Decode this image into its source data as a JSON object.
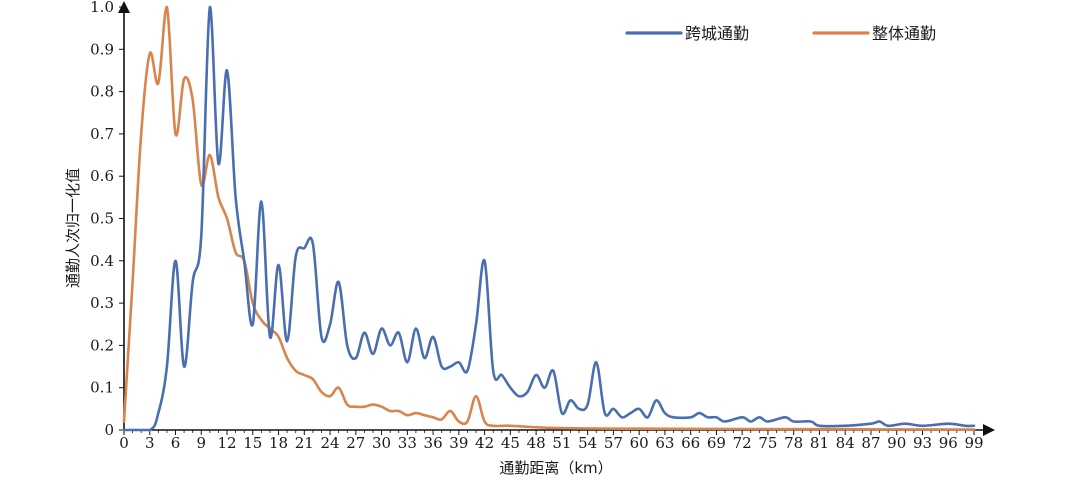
{
  "chart_data": {
    "type": "line",
    "xlabel": "通勤距离（km）",
    "ylabel": "通勤人次归一化值",
    "xlim": [
      0,
      100
    ],
    "ylim": [
      0,
      1.0
    ],
    "x_ticks": [
      0,
      3,
      6,
      9,
      12,
      15,
      18,
      21,
      24,
      27,
      30,
      33,
      36,
      39,
      42,
      45,
      48,
      51,
      54,
      57,
      60,
      63,
      66,
      69,
      72,
      75,
      78,
      81,
      84,
      87,
      90,
      93,
      96,
      99
    ],
    "x_tick_labels": [
      "0",
      "3",
      "6",
      "9",
      "12",
      "15",
      "18",
      "21",
      "24",
      "27",
      "30",
      "33",
      "36",
      "39",
      "42",
      "45",
      "48",
      "51",
      "54",
      "57",
      "60",
      "63",
      "66",
      "69",
      "72",
      "75",
      "78",
      "81",
      "84",
      "87",
      "90",
      "93",
      "96",
      "99"
    ],
    "y_ticks": [
      0,
      0.1,
      0.2,
      0.3,
      0.4,
      0.5,
      0.6,
      0.7,
      0.8,
      0.9,
      1.0
    ],
    "y_tick_labels": [
      "0",
      "0.1",
      "0.2",
      "0.3",
      "0.4",
      "0.5",
      "0.6",
      "0.7",
      "0.8",
      "0.9",
      "1.0"
    ],
    "legend_position": "top-right",
    "grid": false,
    "series": [
      {
        "name": "跨城通勤",
        "color": "#4a6fb0",
        "points": [
          [
            0,
            0
          ],
          [
            3,
            0
          ],
          [
            4,
            0.04
          ],
          [
            5,
            0.15
          ],
          [
            6,
            0.4
          ],
          [
            7,
            0.15
          ],
          [
            8,
            0.35
          ],
          [
            9,
            0.46
          ],
          [
            10,
            1.0
          ],
          [
            11,
            0.63
          ],
          [
            12,
            0.85
          ],
          [
            13,
            0.55
          ],
          [
            14,
            0.4
          ],
          [
            15,
            0.25
          ],
          [
            16,
            0.54
          ],
          [
            17,
            0.22
          ],
          [
            18,
            0.39
          ],
          [
            19,
            0.21
          ],
          [
            20,
            0.41
          ],
          [
            21,
            0.43
          ],
          [
            22,
            0.44
          ],
          [
            23,
            0.22
          ],
          [
            24,
            0.25
          ],
          [
            25,
            0.35
          ],
          [
            26,
            0.2
          ],
          [
            27,
            0.17
          ],
          [
            28,
            0.23
          ],
          [
            29,
            0.18
          ],
          [
            30,
            0.24
          ],
          [
            31,
            0.2
          ],
          [
            32,
            0.23
          ],
          [
            33,
            0.16
          ],
          [
            34,
            0.24
          ],
          [
            35,
            0.17
          ],
          [
            36,
            0.22
          ],
          [
            37,
            0.15
          ],
          [
            38,
            0.15
          ],
          [
            39,
            0.16
          ],
          [
            40,
            0.14
          ],
          [
            41,
            0.25
          ],
          [
            42,
            0.4
          ],
          [
            43,
            0.14
          ],
          [
            44,
            0.13
          ],
          [
            45,
            0.1
          ],
          [
            46,
            0.08
          ],
          [
            47,
            0.09
          ],
          [
            48,
            0.13
          ],
          [
            49,
            0.1
          ],
          [
            50,
            0.14
          ],
          [
            51,
            0.04
          ],
          [
            52,
            0.07
          ],
          [
            53,
            0.05
          ],
          [
            54,
            0.06
          ],
          [
            55,
            0.16
          ],
          [
            56,
            0.04
          ],
          [
            57,
            0.05
          ],
          [
            58,
            0.03
          ],
          [
            59,
            0.04
          ],
          [
            60,
            0.05
          ],
          [
            61,
            0.03
          ],
          [
            62,
            0.07
          ],
          [
            63,
            0.04
          ],
          [
            64,
            0.03
          ],
          [
            66,
            0.03
          ],
          [
            67,
            0.04
          ],
          [
            68,
            0.03
          ],
          [
            69,
            0.03
          ],
          [
            70,
            0.02
          ],
          [
            72,
            0.03
          ],
          [
            73,
            0.02
          ],
          [
            74,
            0.03
          ],
          [
            75,
            0.02
          ],
          [
            77,
            0.03
          ],
          [
            78,
            0.02
          ],
          [
            80,
            0.02
          ],
          [
            81,
            0.01
          ],
          [
            84,
            0.01
          ],
          [
            87,
            0.015
          ],
          [
            88,
            0.02
          ],
          [
            89,
            0.01
          ],
          [
            91,
            0.015
          ],
          [
            93,
            0.01
          ],
          [
            96,
            0.015
          ],
          [
            98,
            0.01
          ],
          [
            99,
            0.01
          ]
        ]
      },
      {
        "name": "整体通勤",
        "color": "#d9844a",
        "points": [
          [
            0,
            0.02
          ],
          [
            1,
            0.35
          ],
          [
            2,
            0.7
          ],
          [
            3,
            0.89
          ],
          [
            4,
            0.82
          ],
          [
            5,
            1.0
          ],
          [
            6,
            0.7
          ],
          [
            7,
            0.83
          ],
          [
            8,
            0.78
          ],
          [
            9,
            0.58
          ],
          [
            10,
            0.65
          ],
          [
            11,
            0.55
          ],
          [
            12,
            0.5
          ],
          [
            13,
            0.42
          ],
          [
            14,
            0.4
          ],
          [
            15,
            0.3
          ],
          [
            16,
            0.26
          ],
          [
            17,
            0.24
          ],
          [
            18,
            0.22
          ],
          [
            19,
            0.17
          ],
          [
            20,
            0.14
          ],
          [
            21,
            0.13
          ],
          [
            22,
            0.12
          ],
          [
            23,
            0.09
          ],
          [
            24,
            0.08
          ],
          [
            25,
            0.1
          ],
          [
            26,
            0.06
          ],
          [
            27,
            0.055
          ],
          [
            28,
            0.055
          ],
          [
            29,
            0.06
          ],
          [
            30,
            0.055
          ],
          [
            31,
            0.045
          ],
          [
            32,
            0.045
          ],
          [
            33,
            0.035
          ],
          [
            34,
            0.04
          ],
          [
            35,
            0.035
          ],
          [
            36,
            0.03
          ],
          [
            37,
            0.025
          ],
          [
            38,
            0.045
          ],
          [
            39,
            0.02
          ],
          [
            40,
            0.02
          ],
          [
            41,
            0.08
          ],
          [
            42,
            0.02
          ],
          [
            43,
            0.01
          ],
          [
            45,
            0.01
          ],
          [
            50,
            0.005
          ],
          [
            60,
            0.003
          ],
          [
            80,
            0.002
          ],
          [
            99,
            0.001
          ]
        ]
      }
    ]
  }
}
